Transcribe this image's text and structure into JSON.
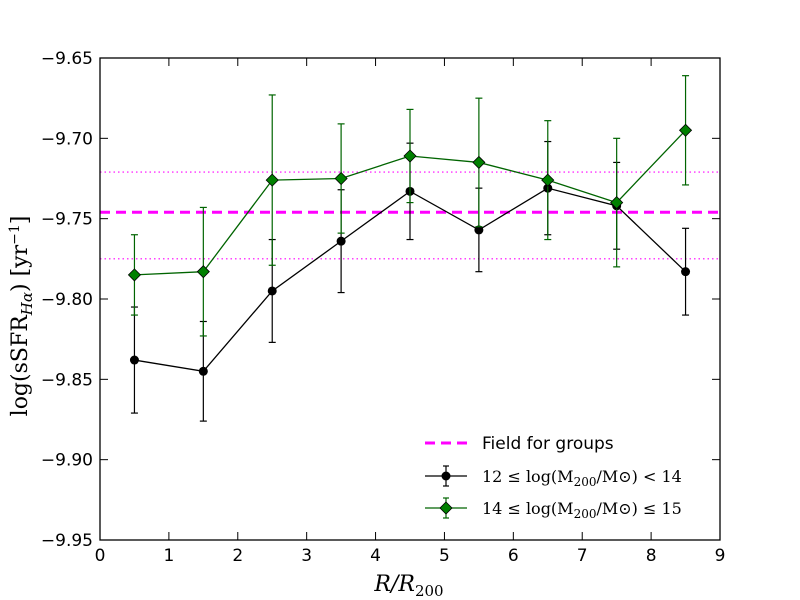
{
  "chart_data": {
    "type": "line",
    "xlabel": "R/R200",
    "xlabel_main": "R/R",
    "xlabel_sub": "200",
    "ylabel": "log(sSFR_Hα) [yr^-1]",
    "ylabel_main": "log(sSFR",
    "ylabel_sub": "Hα",
    "ylabel_unit": ") [yr",
    "ylabel_exp": "−1",
    "ylabel_close": "]",
    "xlim": [
      0,
      9
    ],
    "ylim": [
      -9.95,
      -9.65
    ],
    "x_ticks": [
      0,
      1,
      2,
      3,
      4,
      5,
      6,
      7,
      8,
      9
    ],
    "x_tick_labels": [
      "0",
      "1",
      "2",
      "3",
      "4",
      "5",
      "6",
      "7",
      "8",
      "9"
    ],
    "y_ticks": [
      -9.95,
      -9.9,
      -9.85,
      -9.8,
      -9.75,
      -9.7,
      -9.65
    ],
    "y_tick_labels": [
      "−9.95",
      "−9.90",
      "−9.85",
      "−9.80",
      "−9.75",
      "−9.70",
      "−9.65"
    ],
    "reference_lines": {
      "field": {
        "y": -9.746,
        "label": "Field for groups",
        "color": "#ff00ff",
        "style": "dashed"
      },
      "field_upper": {
        "y": -9.721,
        "color": "#ff00ff",
        "style": "dotted"
      },
      "field_lower": {
        "y": -9.775,
        "color": "#ff00ff",
        "style": "dotted"
      }
    },
    "series": [
      {
        "name": "12 ≤ log(M200/M⊙) < 14",
        "legend_label": "12 ≤ log(M",
        "legend_sub": "200",
        "legend_tail": "/M⊙) < 14",
        "color": "#000000",
        "marker": "circle",
        "x": [
          0.5,
          1.5,
          2.5,
          3.5,
          4.5,
          5.5,
          6.5,
          7.5,
          8.5
        ],
        "y": [
          -9.838,
          -9.845,
          -9.795,
          -9.764,
          -9.733,
          -9.757,
          -9.731,
          -9.742,
          -9.783
        ],
        "err": [
          0.033,
          0.031,
          0.032,
          0.032,
          0.03,
          0.026,
          0.029,
          0.027,
          0.027
        ]
      },
      {
        "name": "14 ≤ log(M200/M⊙) ≤ 15",
        "legend_label": "14 ≤ log(M",
        "legend_sub": "200",
        "legend_tail": "/M⊙) ≤ 15",
        "color": "#006400",
        "marker_fill": "#008000",
        "marker": "diamond",
        "x": [
          0.5,
          1.5,
          2.5,
          3.5,
          4.5,
          5.5,
          6.5,
          7.5,
          8.5
        ],
        "y": [
          -9.785,
          -9.783,
          -9.726,
          -9.725,
          -9.711,
          -9.715,
          -9.726,
          -9.74,
          -9.695
        ],
        "err": [
          0.025,
          0.04,
          0.053,
          0.034,
          0.029,
          0.04,
          0.037,
          0.04,
          0.034
        ]
      }
    ]
  }
}
